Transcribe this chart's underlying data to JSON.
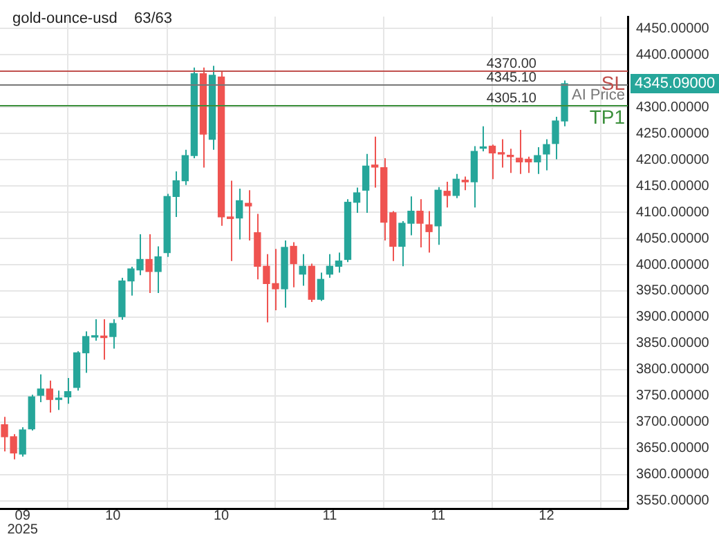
{
  "chart_data": {
    "type": "candlestick",
    "title": "gold-ounce-usd",
    "subtitle": "63/63",
    "categories": [
      null,
      null,
      "09\n2025",
      null,
      null,
      null,
      null,
      null,
      null,
      null,
      null,
      null,
      "10",
      null,
      null,
      null,
      null,
      null,
      null,
      null,
      null,
      null,
      null,
      null,
      "10",
      null,
      null,
      null,
      null,
      null,
      null,
      null,
      null,
      null,
      null,
      null,
      "11",
      null,
      null,
      null,
      null,
      null,
      null,
      null,
      null,
      null,
      null,
      null,
      "11",
      null,
      null,
      null,
      null,
      null,
      null,
      null,
      null,
      null,
      null,
      null,
      "12",
      null,
      null
    ],
    "ohlc": [
      [
        3695,
        3710,
        3644,
        3672
      ],
      [
        3672,
        3677,
        3629,
        3641
      ],
      [
        3639,
        3690,
        3634,
        3685
      ],
      [
        3687,
        3752,
        3684,
        3748
      ],
      [
        3751,
        3791,
        3738,
        3763
      ],
      [
        3763,
        3779,
        3718,
        3743
      ],
      [
        3743,
        3760,
        3723,
        3745
      ],
      [
        3748,
        3784,
        3735,
        3758
      ],
      [
        3766,
        3835,
        3760,
        3832
      ],
      [
        3832,
        3873,
        3794,
        3863
      ],
      [
        3862,
        3896,
        3855,
        3864
      ],
      [
        3864,
        3896,
        3819,
        3861
      ],
      [
        3863,
        3896,
        3840,
        3888
      ],
      [
        3901,
        3975,
        3895,
        3969
      ],
      [
        3969,
        3996,
        3941,
        3992
      ],
      [
        3990,
        4058,
        3980,
        4010
      ],
      [
        4010,
        4058,
        3946,
        3987
      ],
      [
        3987,
        4035,
        3946,
        4015
      ],
      [
        4023,
        4135,
        4015,
        4130
      ],
      [
        4130,
        4178,
        4091,
        4160
      ],
      [
        4160,
        4219,
        4152,
        4208
      ],
      [
        4208,
        4376,
        4203,
        4364
      ],
      [
        4364,
        4376,
        4185,
        4249
      ],
      [
        4239,
        4379,
        4219,
        4361
      ],
      [
        4358,
        4369,
        4074,
        4091
      ],
      [
        4091,
        4160,
        4007,
        4088
      ],
      [
        4089,
        4145,
        4048,
        4122
      ],
      [
        4117,
        4142,
        4046,
        4112
      ],
      [
        4061,
        4097,
        3972,
        3997
      ],
      [
        3997,
        4020,
        3890,
        3964
      ],
      [
        3964,
        4030,
        3913,
        3954
      ],
      [
        3954,
        4046,
        3918,
        4033
      ],
      [
        4035,
        4043,
        3957,
        4002
      ],
      [
        3982,
        4020,
        3960,
        3997
      ],
      [
        3997,
        4002,
        3929,
        3934
      ],
      [
        3934,
        3985,
        3931,
        3972
      ],
      [
        3982,
        4020,
        3975,
        3997
      ],
      [
        3997,
        4023,
        3985,
        4007
      ],
      [
        4010,
        4125,
        4005,
        4119
      ],
      [
        4119,
        4147,
        4099,
        4137
      ],
      [
        4142,
        4211,
        4099,
        4188
      ],
      [
        4190,
        4244,
        4147,
        4186
      ],
      [
        4185,
        4203,
        4046,
        4081
      ],
      [
        4099,
        4102,
        4007,
        4035
      ],
      [
        4035,
        4083,
        3997,
        4079
      ],
      [
        4079,
        4130,
        4056,
        4102
      ],
      [
        4102,
        4125,
        4033,
        4079
      ],
      [
        4076,
        4102,
        4023,
        4063
      ],
      [
        4074,
        4148,
        4038,
        4142
      ],
      [
        4140,
        4158,
        4109,
        4132
      ],
      [
        4132,
        4173,
        4127,
        4163
      ],
      [
        4161,
        4168,
        4142,
        4158
      ],
      [
        4158,
        4226,
        4109,
        4216
      ],
      [
        4222,
        4264,
        4216,
        4224
      ],
      [
        4226,
        4229,
        4163,
        4213
      ],
      [
        4213,
        4239,
        4185,
        4211
      ],
      [
        4208,
        4221,
        4175,
        4206
      ],
      [
        4203,
        4257,
        4173,
        4196
      ],
      [
        4201,
        4206,
        4175,
        4196
      ],
      [
        4196,
        4224,
        4173,
        4208
      ],
      [
        4211,
        4239,
        4180,
        4229
      ],
      [
        4231,
        4282,
        4201,
        4274
      ],
      [
        4274,
        4351,
        4264,
        4345.09
      ]
    ],
    "ylim": [
      3535,
      4473
    ],
    "yticks": [
      {
        "value": 3550,
        "label": "3550.00000"
      },
      {
        "value": 3600,
        "label": "3600.00000"
      },
      {
        "value": 3650,
        "label": "3650.00000"
      },
      {
        "value": 3700,
        "label": "3700.00000"
      },
      {
        "value": 3750,
        "label": "3750.00000"
      },
      {
        "value": 3800,
        "label": "3800.00000"
      },
      {
        "value": 3850,
        "label": "3850.00000"
      },
      {
        "value": 3900,
        "label": "3900.00000"
      },
      {
        "value": 3950,
        "label": "3950.00000"
      },
      {
        "value": 4000,
        "label": "4000.00000"
      },
      {
        "value": 4050,
        "label": "4050.00000"
      },
      {
        "value": 4100,
        "label": "4100.00000"
      },
      {
        "value": 4150,
        "label": "4150.00000"
      },
      {
        "value": 4200,
        "label": "4200.00000"
      },
      {
        "value": 4250,
        "label": "4250.00000"
      },
      {
        "value": 4300,
        "label": "4300.00000"
      },
      {
        "value": 4400,
        "label": "4400.00000"
      },
      {
        "value": 4450,
        "label": "4450.00000"
      }
    ],
    "ref_lines": [
      {
        "axis": "y",
        "value": 4370,
        "label": "4370.00",
        "color": "#c0504d"
      },
      {
        "axis": "y",
        "value": 4345.1,
        "label": "4345.10",
        "color": "#777777"
      },
      {
        "axis": "y",
        "value": 4305.1,
        "label": "4305.10",
        "color": "#3a8f3a"
      }
    ],
    "annotations": [
      {
        "text": "SL",
        "y": 4370
      },
      {
        "text": "AI Price",
        "y": 4345.1
      },
      {
        "text": "TP1",
        "y": 4305.1
      },
      "4345.09000"
    ],
    "grid": true
  }
}
